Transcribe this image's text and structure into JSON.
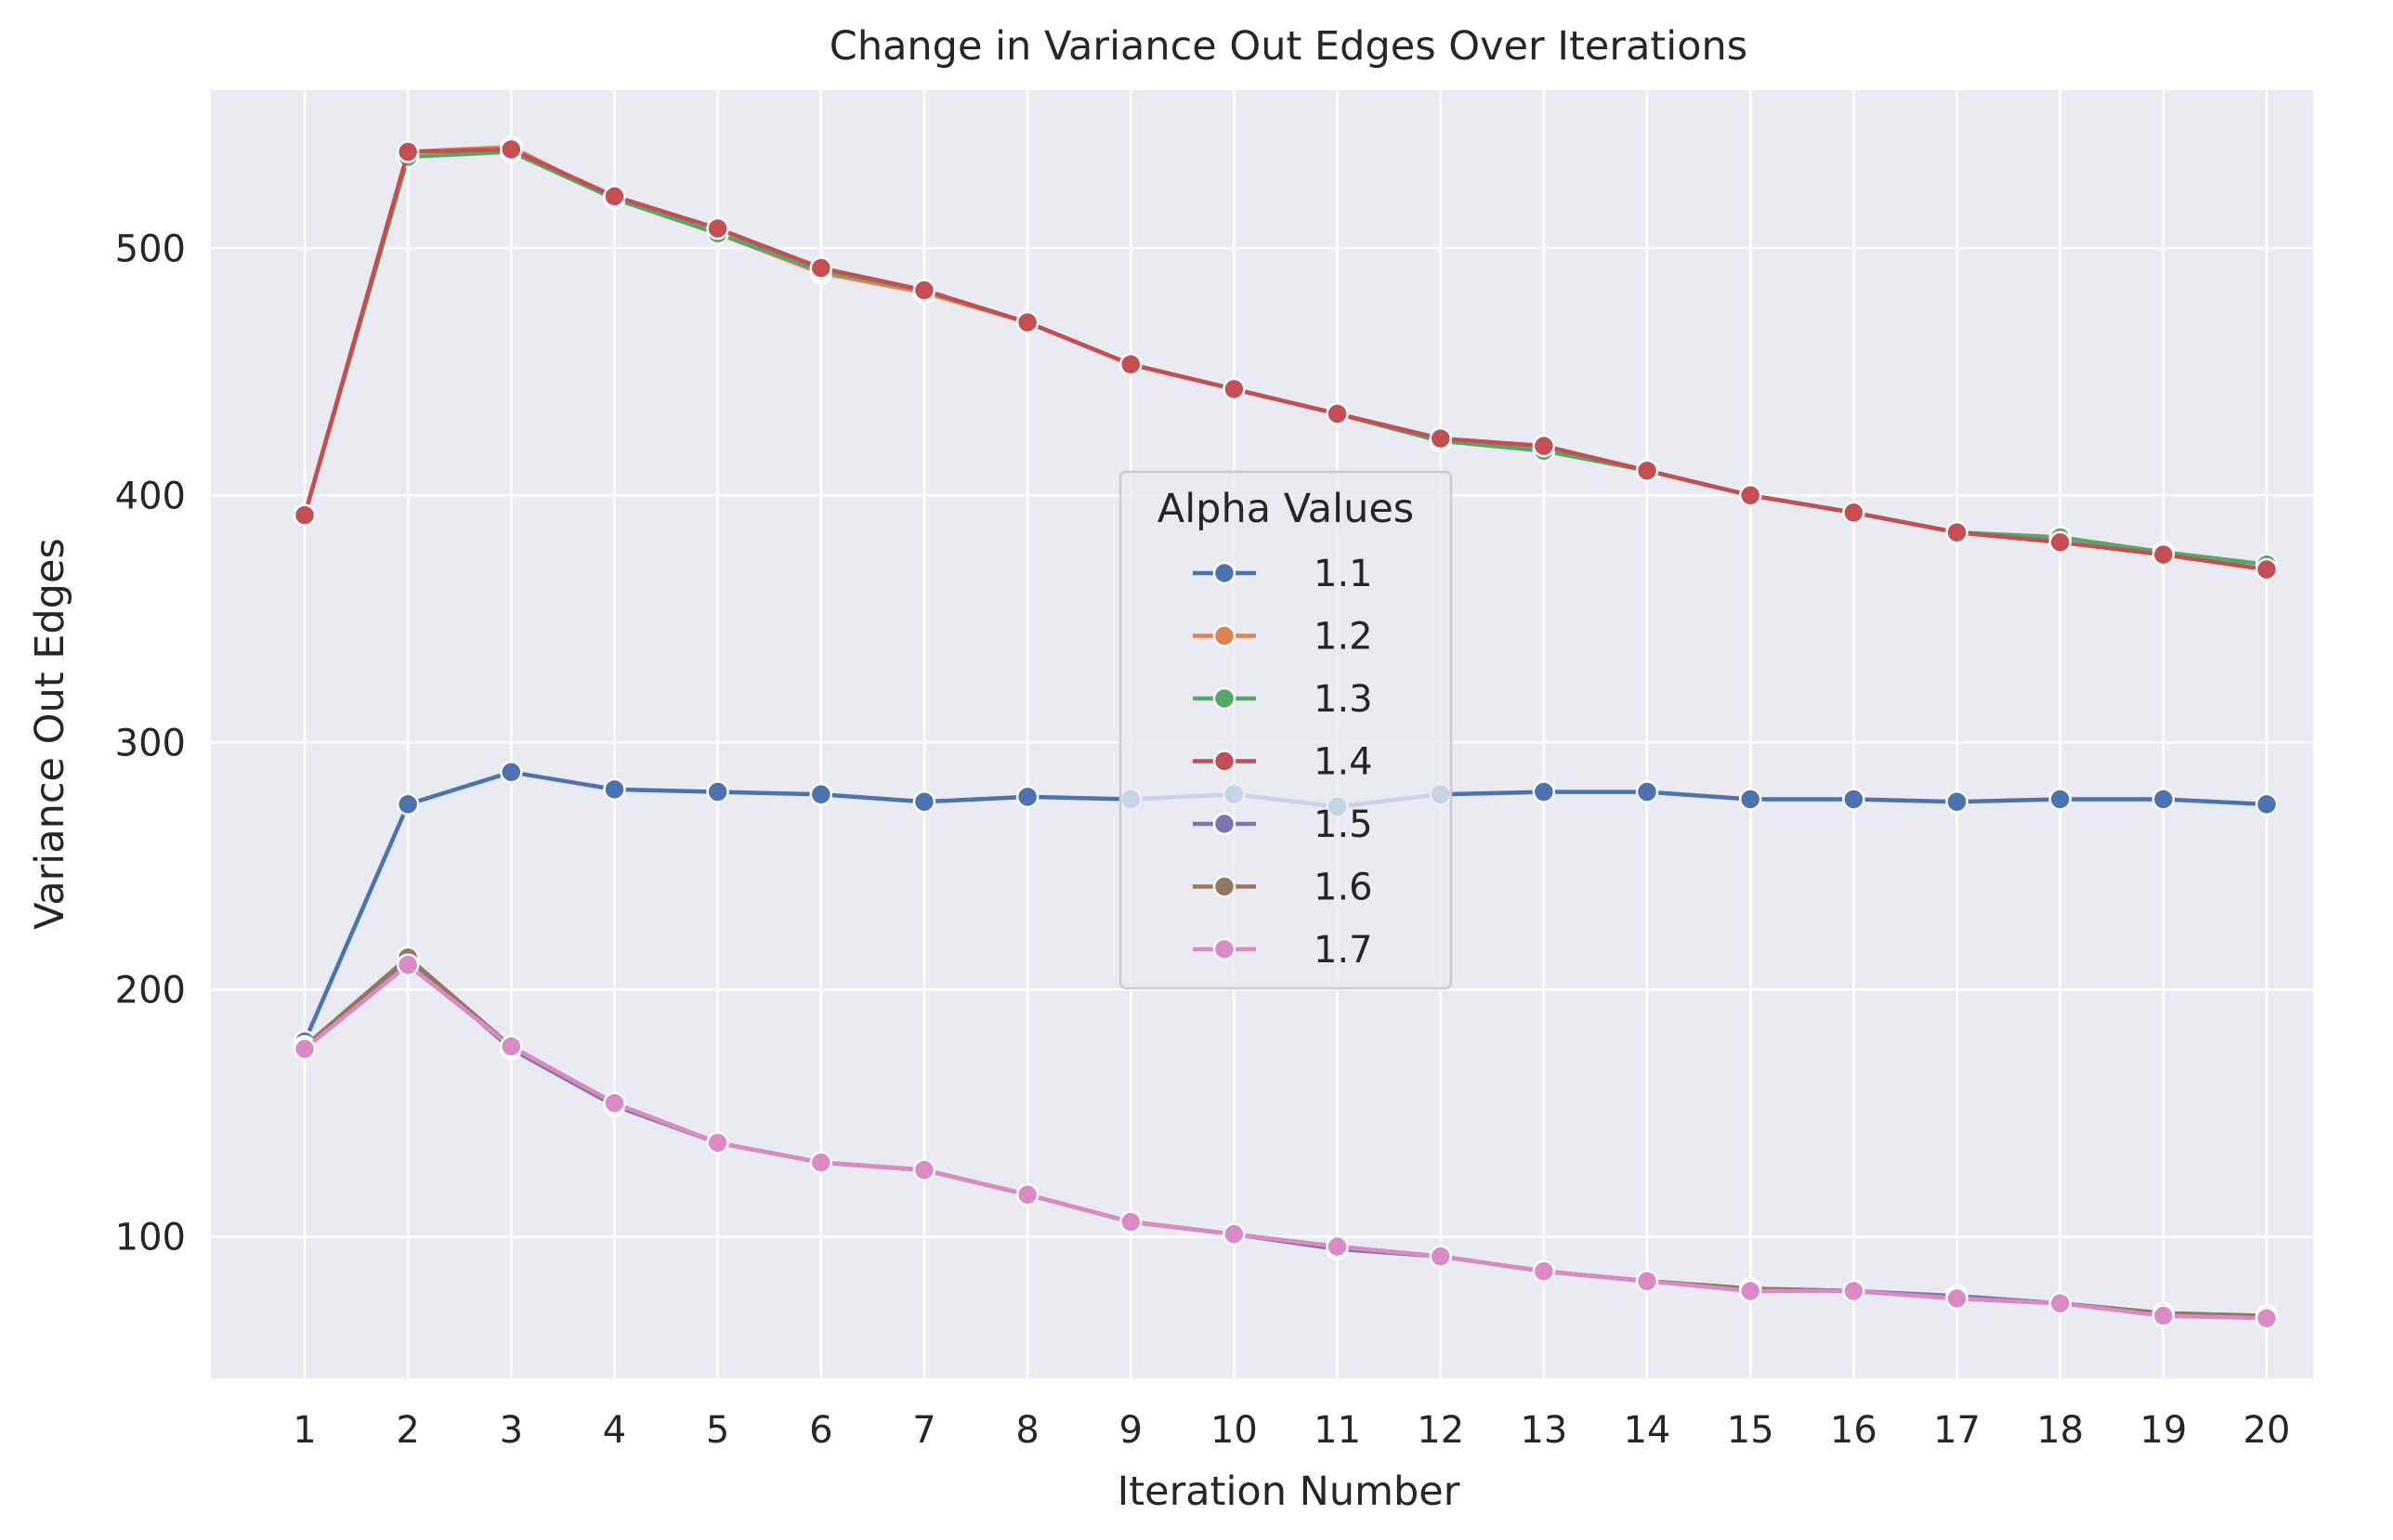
{
  "chart_data": {
    "type": "line",
    "title": "Change in Variance Out Edges Over Iterations",
    "xlabel": "Iteration Number",
    "ylabel": "Variance Out Edges",
    "x": [
      1,
      2,
      3,
      4,
      5,
      6,
      7,
      8,
      9,
      10,
      11,
      12,
      13,
      14,
      15,
      16,
      17,
      18,
      19,
      20
    ],
    "xticks": [
      "1",
      "2",
      "3",
      "4",
      "5",
      "6",
      "7",
      "8",
      "9",
      "10",
      "11",
      "12",
      "13",
      "14",
      "15",
      "16",
      "17",
      "18",
      "19",
      "20"
    ],
    "yticks": [
      100,
      200,
      300,
      400,
      500
    ],
    "ylim": [
      45,
      565
    ],
    "grid": true,
    "legend": {
      "title": "Alpha Values",
      "placement": "center"
    },
    "series": [
      {
        "name": "1.1",
        "color": "#4c72b0",
        "values": [
          179,
          275,
          288,
          281,
          280,
          279,
          276,
          278,
          277,
          279,
          274,
          279,
          280,
          280,
          277,
          277,
          276,
          277,
          277,
          275
        ]
      },
      {
        "name": "1.2",
        "color": "#dd8452",
        "values": [
          392,
          539,
          541,
          520,
          506,
          490,
          482,
          470,
          453,
          443,
          433,
          422,
          419,
          410,
          400,
          393,
          385,
          381,
          376,
          370
        ]
      },
      {
        "name": "1.3",
        "color": "#55a868",
        "values": [
          392,
          537,
          539,
          520,
          506,
          491,
          483,
          470,
          453,
          443,
          433,
          422,
          418,
          410,
          400,
          393,
          385,
          383,
          377,
          372
        ]
      },
      {
        "name": "1.4",
        "color": "#c44e52",
        "values": [
          392,
          539,
          540,
          521,
          508,
          492,
          483,
          470,
          453,
          443,
          433,
          423,
          420,
          410,
          400,
          393,
          385,
          381,
          376,
          370
        ]
      },
      {
        "name": "1.5",
        "color": "#8172b3",
        "values": [
          177,
          212,
          176,
          153,
          138,
          130,
          127,
          117,
          106,
          101,
          95,
          92,
          86,
          82,
          79,
          78,
          76,
          73,
          69,
          68
        ]
      },
      {
        "name": "1.6",
        "color": "#937860",
        "values": [
          177,
          213,
          177,
          154,
          138,
          130,
          127,
          117,
          106,
          101,
          96,
          92,
          86,
          82,
          79,
          78,
          75,
          73,
          69,
          68
        ]
      },
      {
        "name": "1.7",
        "color": "#da8bc3",
        "values": [
          176,
          210,
          177,
          154,
          138,
          130,
          127,
          117,
          106,
          101,
          96,
          92,
          86,
          82,
          78,
          78,
          75,
          73,
          68,
          67
        ]
      }
    ]
  }
}
